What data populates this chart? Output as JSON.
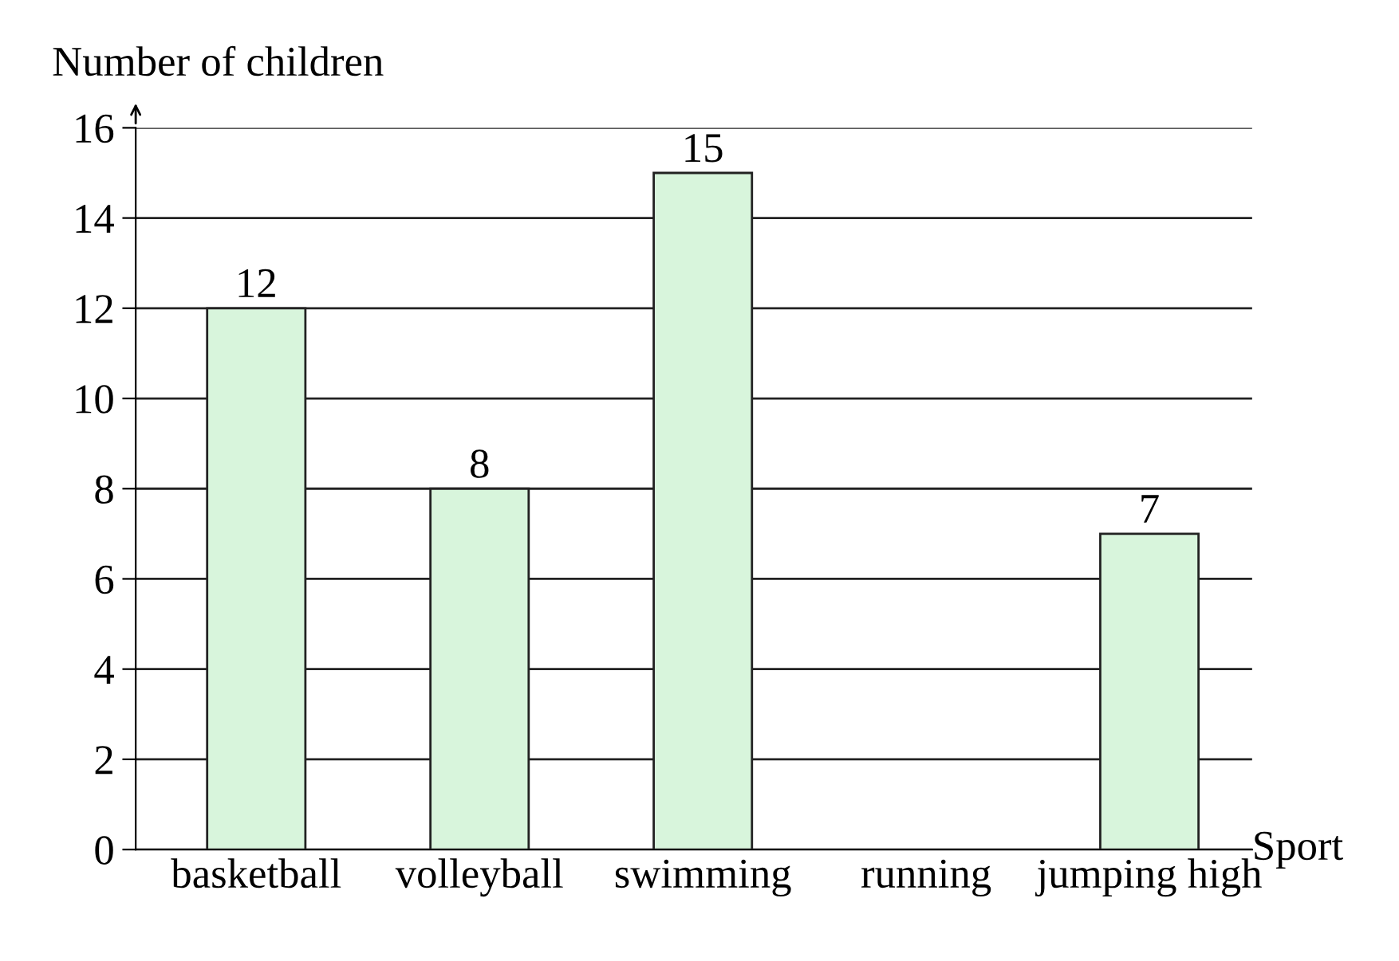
{
  "chart_data": {
    "type": "bar",
    "xlabel": "Sport",
    "ylabel": "Number of children",
    "categories": [
      "basketball",
      "volleyball",
      "swimming",
      "running",
      "jumping high"
    ],
    "values": [
      12,
      8,
      15,
      null,
      7
    ],
    "color": "#d8f5dc",
    "ylim": [
      0,
      16
    ],
    "yticks": [
      0,
      2,
      4,
      6,
      8,
      10,
      12,
      14,
      16
    ],
    "grid": "y",
    "data_labels": true
  }
}
